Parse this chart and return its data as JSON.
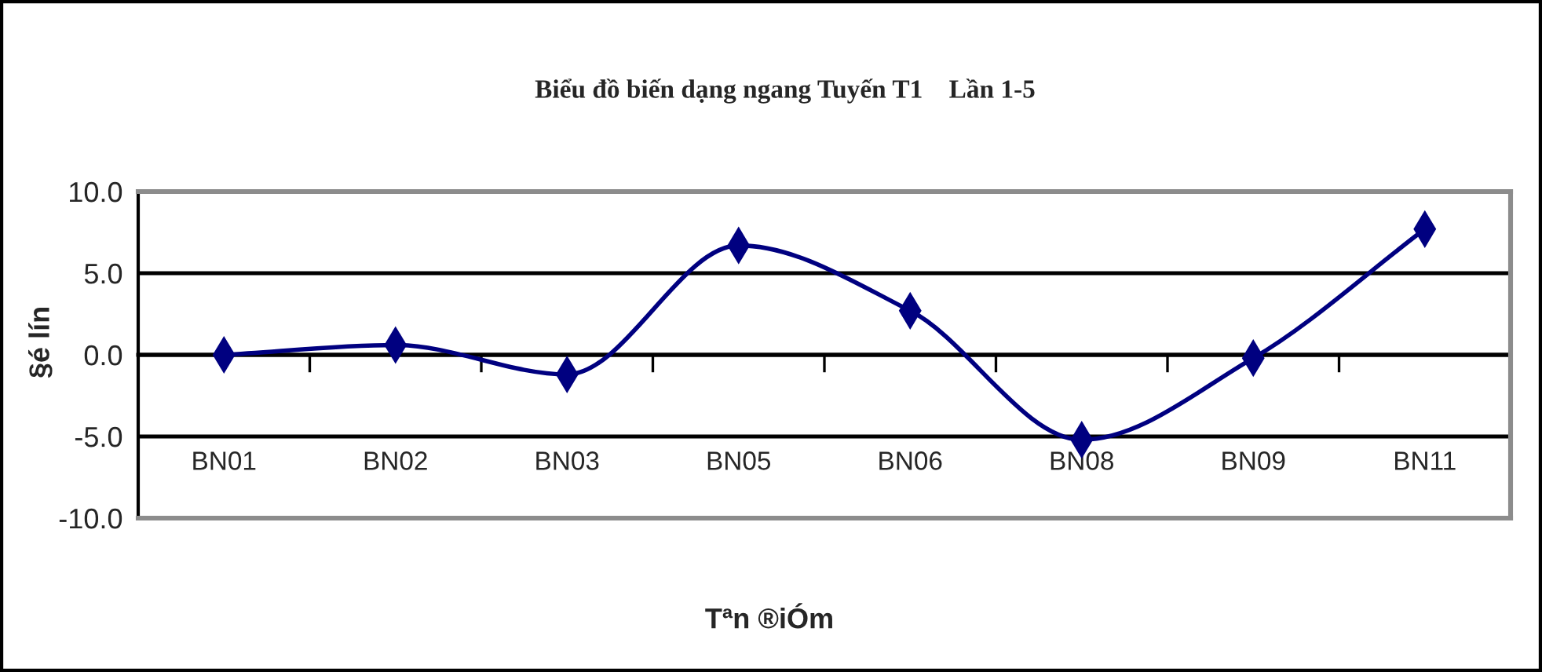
{
  "chart_data": {
    "type": "line",
    "title": "Biểu đồ biến dạng ngang Tuyến T1    Lần 1-5",
    "xlabel": "Tªn ®iÓm",
    "ylabel": "§é lín",
    "categories": [
      "BN01",
      "BN02",
      "BN03",
      "BN05",
      "BN06",
      "BN08",
      "BN09",
      "BN11"
    ],
    "series": [
      {
        "color": "#000080",
        "values": [
          0.0,
          0.6,
          -1.2,
          6.7,
          2.7,
          -5.2,
          -0.2,
          7.7
        ]
      }
    ],
    "ylim": [
      -10,
      10
    ],
    "yticks": [
      {
        "value": -10,
        "label": "-10.0"
      },
      {
        "value": -5,
        "label": "-5.0"
      },
      {
        "value": 0,
        "label": "0.0"
      },
      {
        "value": 5,
        "label": "5.0"
      },
      {
        "value": 10,
        "label": "10.0"
      }
    ],
    "grid": "y",
    "marker": "diamond",
    "line_style": "solid"
  }
}
